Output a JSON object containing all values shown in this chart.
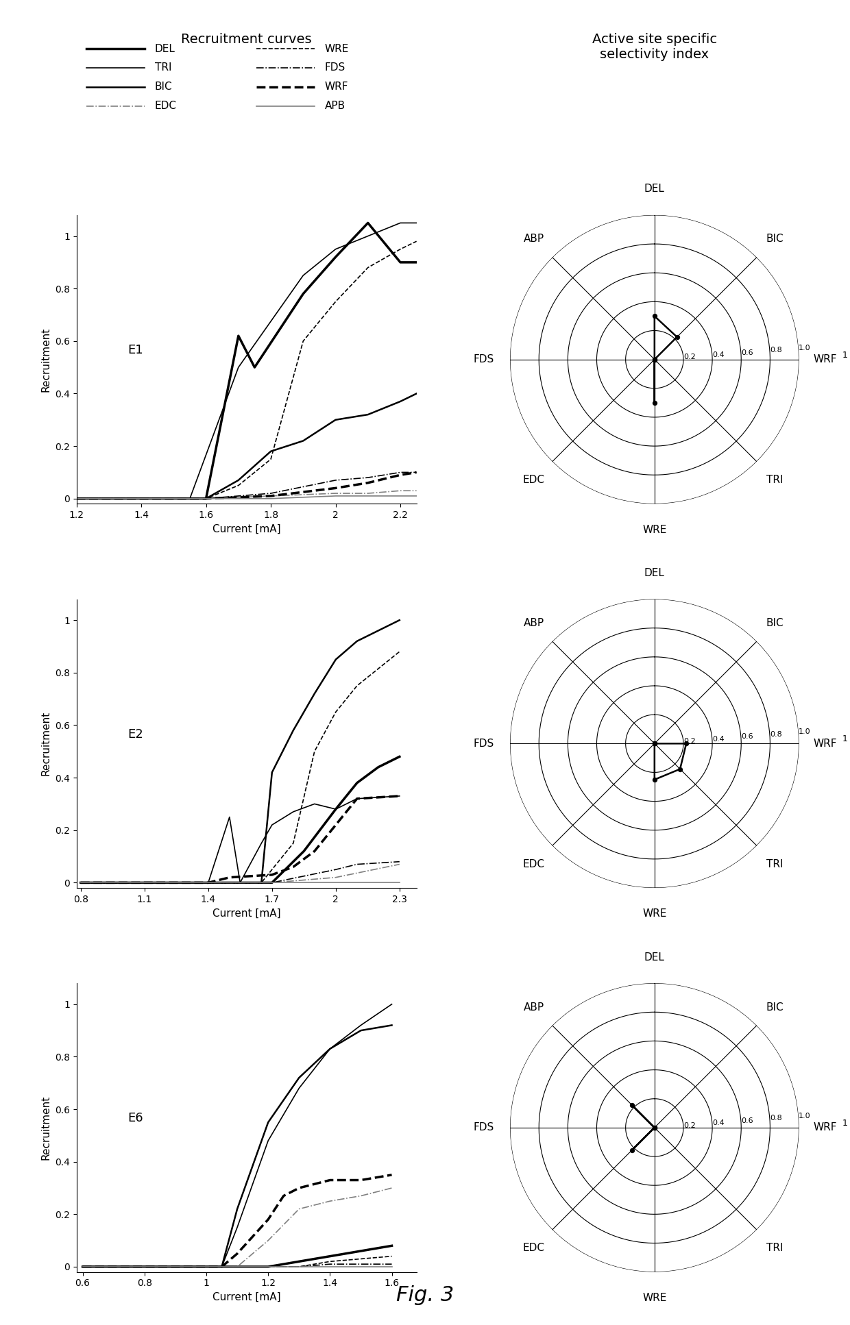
{
  "title_left": "Recruitment curves",
  "title_right": "Active site specific\nselectivity index",
  "fig_caption": "Fig. 3",
  "legend_col1": [
    {
      "label": "DEL",
      "lw": 2.5,
      "ls": "solid",
      "color": "black"
    },
    {
      "label": "TRI",
      "lw": 1.2,
      "ls": "solid",
      "color": "black"
    },
    {
      "label": "BIC",
      "lw": 1.8,
      "ls": "solid",
      "color": "black"
    },
    {
      "label": "EDC",
      "lw": 1.2,
      "ls": "dashdot",
      "color": "gray"
    }
  ],
  "legend_col2": [
    {
      "label": "WRE",
      "lw": 1.2,
      "ls": "dashed",
      "color": "black"
    },
    {
      "label": "FDS",
      "lw": 1.2,
      "ls": "dashdot",
      "color": "black"
    },
    {
      "label": "WRF",
      "lw": 2.5,
      "ls": "dashed",
      "color": "black"
    },
    {
      "label": "APB",
      "lw": 1.2,
      "ls": "solid",
      "color": "gray"
    }
  ],
  "E1": {
    "label": "E1",
    "xlim": [
      1.2,
      2.25
    ],
    "xticks": [
      1.2,
      1.4,
      1.6,
      1.8,
      2.0,
      2.2
    ],
    "ylim": [
      -0.02,
      1.08
    ],
    "yticks": [
      0,
      0.2,
      0.4,
      0.6,
      0.8,
      1.0
    ],
    "curves": {
      "DEL": {
        "x": [
          1.2,
          1.4,
          1.45,
          1.6,
          1.7,
          1.75,
          1.9,
          2.0,
          2.1,
          2.2,
          2.25
        ],
        "y": [
          0,
          0,
          0,
          0.0,
          0.62,
          0.5,
          0.78,
          0.92,
          1.05,
          0.9,
          0.9
        ],
        "lw": 2.5,
        "ls": "solid",
        "color": "black"
      },
      "TRI": {
        "x": [
          1.2,
          1.4,
          1.45,
          1.55,
          1.7,
          1.9,
          2.0,
          2.1,
          2.2,
          2.25
        ],
        "y": [
          0,
          0,
          0,
          0.0,
          0.5,
          0.85,
          0.95,
          1.0,
          1.05,
          1.05
        ],
        "lw": 1.2,
        "ls": "solid",
        "color": "black"
      },
      "BIC": {
        "x": [
          1.2,
          1.4,
          1.6,
          1.7,
          1.8,
          1.9,
          2.0,
          2.1,
          2.2,
          2.25
        ],
        "y": [
          0,
          0,
          0.0,
          0.07,
          0.18,
          0.22,
          0.3,
          0.32,
          0.37,
          0.4
        ],
        "lw": 1.8,
        "ls": "solid",
        "color": "black"
      },
      "EDC": {
        "x": [
          1.2,
          1.6,
          1.8,
          2.0,
          2.1,
          2.2,
          2.25
        ],
        "y": [
          0,
          0.0,
          0.01,
          0.02,
          0.02,
          0.03,
          0.03
        ],
        "lw": 1.2,
        "ls": "dashdot",
        "color": "gray"
      },
      "WRE": {
        "x": [
          1.2,
          1.4,
          1.6,
          1.7,
          1.8,
          1.9,
          2.0,
          2.1,
          2.2,
          2.25
        ],
        "y": [
          0,
          0,
          0.0,
          0.05,
          0.15,
          0.6,
          0.75,
          0.88,
          0.95,
          0.98
        ],
        "lw": 1.2,
        "ls": "dashed",
        "color": "black"
      },
      "FDS": {
        "x": [
          1.2,
          1.4,
          1.6,
          1.8,
          2.0,
          2.1,
          2.2,
          2.25
        ],
        "y": [
          0,
          0,
          0.0,
          0.02,
          0.07,
          0.08,
          0.1,
          0.1
        ],
        "lw": 1.2,
        "ls": "dashdot",
        "color": "black"
      },
      "WRF": {
        "x": [
          1.2,
          1.4,
          1.6,
          1.8,
          2.0,
          2.1,
          2.2,
          2.25
        ],
        "y": [
          0,
          0,
          0.0,
          0.01,
          0.04,
          0.06,
          0.09,
          0.1
        ],
        "lw": 2.5,
        "ls": "dashed",
        "color": "black"
      },
      "APB": {
        "x": [
          1.2,
          1.6,
          1.8,
          2.0,
          2.1,
          2.2,
          2.25
        ],
        "y": [
          0,
          0.0,
          0.0,
          0.01,
          0.01,
          0.01,
          0.01
        ],
        "lw": 1.2,
        "ls": "solid",
        "color": "gray"
      }
    },
    "radar": {
      "values_dict": {
        "WRF": 0.0,
        "BIC": 0.22,
        "DEL": 0.3,
        "ABP": 0.0,
        "FDS": 0.0,
        "EDC": 0.0,
        "WRE": 0.3,
        "TRI": 0.0
      }
    }
  },
  "E2": {
    "label": "E2",
    "xlim": [
      0.78,
      2.38
    ],
    "xticks": [
      0.8,
      1.1,
      1.4,
      1.7,
      2.0,
      2.3
    ],
    "ylim": [
      -0.02,
      1.08
    ],
    "yticks": [
      0,
      0.2,
      0.4,
      0.6,
      0.8,
      1.0
    ],
    "curves": {
      "DEL": {
        "x": [
          0.8,
          1.1,
          1.4,
          1.7,
          1.85,
          2.0,
          2.1,
          2.2,
          2.3
        ],
        "y": [
          0,
          0,
          0.0,
          0.0,
          0.12,
          0.28,
          0.38,
          0.44,
          0.48
        ],
        "lw": 2.5,
        "ls": "solid",
        "color": "black"
      },
      "TRI": {
        "x": [
          0.8,
          1.1,
          1.4,
          1.5,
          1.55,
          1.65,
          1.7,
          1.8,
          1.9,
          2.0,
          2.1,
          2.3
        ],
        "y": [
          0,
          0,
          0.0,
          0.25,
          0.0,
          0.15,
          0.22,
          0.27,
          0.3,
          0.28,
          0.32,
          0.33
        ],
        "lw": 1.2,
        "ls": "solid",
        "color": "black"
      },
      "BIC": {
        "x": [
          0.8,
          1.1,
          1.4,
          1.6,
          1.65,
          1.7,
          1.8,
          1.9,
          2.0,
          2.1,
          2.3
        ],
        "y": [
          0,
          0,
          0.0,
          0.0,
          0.0,
          0.42,
          0.58,
          0.72,
          0.85,
          0.92,
          1.0
        ],
        "lw": 1.8,
        "ls": "solid",
        "color": "black"
      },
      "EDC": {
        "x": [
          0.8,
          1.1,
          1.4,
          1.7,
          2.0,
          2.3
        ],
        "y": [
          0,
          0,
          0.0,
          0.0,
          0.02,
          0.07
        ],
        "lw": 1.2,
        "ls": "dashdot",
        "color": "gray"
      },
      "WRE": {
        "x": [
          0.8,
          1.1,
          1.4,
          1.6,
          1.65,
          1.7,
          1.8,
          1.9,
          2.0,
          2.1,
          2.3
        ],
        "y": [
          0,
          0,
          0.0,
          0.0,
          0.0,
          0.05,
          0.15,
          0.5,
          0.65,
          0.75,
          0.88
        ],
        "lw": 1.2,
        "ls": "dashed",
        "color": "black"
      },
      "FDS": {
        "x": [
          0.8,
          1.1,
          1.4,
          1.7,
          2.0,
          2.1,
          2.3
        ],
        "y": [
          0,
          0,
          0.0,
          0.0,
          0.05,
          0.07,
          0.08
        ],
        "lw": 1.2,
        "ls": "dashdot",
        "color": "black"
      },
      "WRF": {
        "x": [
          0.8,
          1.1,
          1.4,
          1.5,
          1.7,
          1.8,
          1.9,
          2.0,
          2.1,
          2.3
        ],
        "y": [
          0,
          0,
          0.0,
          0.02,
          0.03,
          0.06,
          0.12,
          0.22,
          0.32,
          0.33
        ],
        "lw": 2.5,
        "ls": "dashed",
        "color": "black"
      },
      "APB": {
        "x": [
          0.8,
          1.1,
          1.4,
          1.7,
          2.0,
          2.3
        ],
        "y": [
          0,
          0,
          0.0,
          0.0,
          0.0,
          0.0
        ],
        "lw": 1.2,
        "ls": "solid",
        "color": "gray"
      }
    },
    "radar": {
      "values_dict": {
        "WRF": 0.22,
        "BIC": 0.0,
        "DEL": 0.0,
        "ABP": 0.0,
        "FDS": 0.0,
        "EDC": 0.0,
        "WRE": 0.25,
        "TRI": 0.25
      }
    }
  },
  "E6": {
    "label": "E6",
    "xlim": [
      0.58,
      1.68
    ],
    "xticks": [
      0.6,
      0.8,
      1.0,
      1.2,
      1.4,
      1.6
    ],
    "ylim": [
      -0.02,
      1.08
    ],
    "yticks": [
      0,
      0.2,
      0.4,
      0.6,
      0.8,
      1.0
    ],
    "curves": {
      "DEL": {
        "x": [
          0.6,
          0.8,
          1.0,
          1.1,
          1.2,
          1.3,
          1.4,
          1.5,
          1.6
        ],
        "y": [
          0,
          0,
          0.0,
          0.0,
          0.0,
          0.02,
          0.04,
          0.06,
          0.08
        ],
        "lw": 2.5,
        "ls": "solid",
        "color": "black"
      },
      "TRI": {
        "x": [
          0.6,
          0.8,
          1.0,
          1.05,
          1.1,
          1.2,
          1.3,
          1.4,
          1.5,
          1.6
        ],
        "y": [
          0,
          0,
          0.0,
          0.0,
          0.15,
          0.48,
          0.68,
          0.83,
          0.92,
          1.0
        ],
        "lw": 1.2,
        "ls": "solid",
        "color": "black"
      },
      "BIC": {
        "x": [
          0.6,
          0.8,
          1.0,
          1.05,
          1.1,
          1.2,
          1.3,
          1.4,
          1.5,
          1.6
        ],
        "y": [
          0,
          0,
          0.0,
          0.0,
          0.22,
          0.55,
          0.72,
          0.83,
          0.9,
          0.92
        ],
        "lw": 1.8,
        "ls": "solid",
        "color": "black"
      },
      "EDC": {
        "x": [
          0.6,
          0.8,
          1.0,
          1.1,
          1.2,
          1.3,
          1.4,
          1.5,
          1.6
        ],
        "y": [
          0,
          0,
          0.0,
          0.0,
          0.1,
          0.22,
          0.25,
          0.27,
          0.3
        ],
        "lw": 1.2,
        "ls": "dashdot",
        "color": "gray"
      },
      "WRE": {
        "x": [
          0.6,
          0.8,
          1.0,
          1.1,
          1.2,
          1.3,
          1.4,
          1.5,
          1.6
        ],
        "y": [
          0,
          0,
          0.0,
          0.0,
          0.0,
          0.0,
          0.02,
          0.03,
          0.04
        ],
        "lw": 1.2,
        "ls": "dashed",
        "color": "black"
      },
      "FDS": {
        "x": [
          0.6,
          0.8,
          1.0,
          1.1,
          1.2,
          1.3,
          1.4,
          1.5,
          1.6
        ],
        "y": [
          0,
          0,
          0.0,
          0.0,
          0.0,
          0.0,
          0.01,
          0.01,
          0.01
        ],
        "lw": 1.2,
        "ls": "dashdot",
        "color": "black"
      },
      "WRF": {
        "x": [
          0.6,
          0.8,
          1.0,
          1.05,
          1.1,
          1.2,
          1.25,
          1.3,
          1.4,
          1.5,
          1.6
        ],
        "y": [
          0,
          0,
          0.0,
          0.0,
          0.05,
          0.18,
          0.27,
          0.3,
          0.33,
          0.33,
          0.35
        ],
        "lw": 2.5,
        "ls": "dashed",
        "color": "black"
      },
      "APB": {
        "x": [
          0.6,
          0.8,
          1.0,
          1.1,
          1.2,
          1.3,
          1.4,
          1.5,
          1.6
        ],
        "y": [
          0,
          0,
          0.0,
          0.0,
          0.0,
          0.0,
          0.0,
          0.0,
          0.0
        ],
        "lw": 1.2,
        "ls": "solid",
        "color": "gray"
      }
    },
    "radar": {
      "values_dict": {
        "WRF": 0.0,
        "BIC": 0.0,
        "DEL": 0.0,
        "ABP": 0.22,
        "FDS": 0.0,
        "EDC": 0.22,
        "WRE": 0.0,
        "TRI": 0.0
      }
    }
  },
  "radar_spoke_order": [
    "WRF",
    "BIC",
    "DEL",
    "ABP",
    "FDS",
    "EDC",
    "WRE",
    "TRI"
  ],
  "radar_rticks": [
    0.2,
    0.4,
    0.6,
    0.8,
    1.0
  ],
  "radar_rlim": [
    0,
    1.0
  ]
}
